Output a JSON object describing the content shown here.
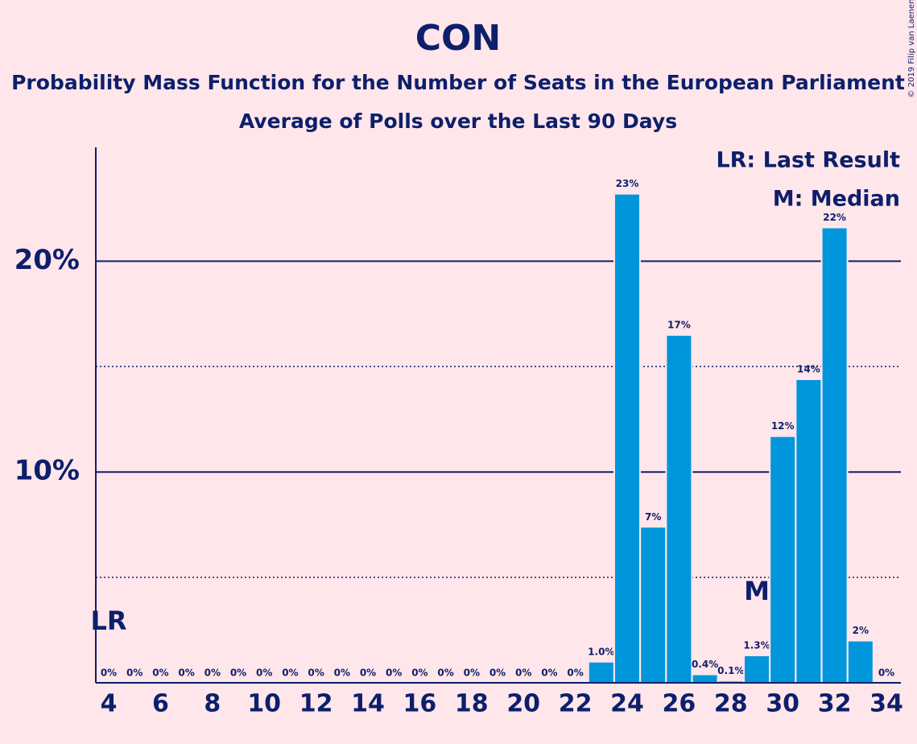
{
  "chart_data": {
    "type": "bar",
    "title": "CON",
    "subtitles": [
      "Probability Mass Function for the Number of Seats in the European Parliament",
      "Average of Polls over the Last 90 Days"
    ],
    "x": [
      4,
      5,
      6,
      7,
      8,
      9,
      10,
      11,
      12,
      13,
      14,
      15,
      16,
      17,
      18,
      19,
      20,
      21,
      22,
      23,
      24,
      25,
      26,
      27,
      28,
      29,
      30,
      31,
      32,
      33,
      34
    ],
    "values": [
      0,
      0,
      0,
      0,
      0,
      0,
      0,
      0,
      0,
      0,
      0,
      0,
      0,
      0,
      0,
      0,
      0,
      0,
      0,
      1.0,
      23.2,
      7.4,
      16.5,
      0.4,
      0.1,
      1.3,
      11.7,
      14.4,
      21.6,
      2.0,
      0
    ],
    "value_labels": [
      "0%",
      "0%",
      "0%",
      "0%",
      "0%",
      "0%",
      "0%",
      "0%",
      "0%",
      "0%",
      "0%",
      "0%",
      "0%",
      "0%",
      "0%",
      "0%",
      "0%",
      "0%",
      "0%",
      "1.0%",
      "23%",
      "7%",
      "17%",
      "0.4%",
      "0.1%",
      "1.3%",
      "12%",
      "14%",
      "22%",
      "2%",
      "0%"
    ],
    "color": "#0096db",
    "xlim": [
      3.5,
      34.5
    ],
    "xticks": [
      4,
      6,
      8,
      10,
      12,
      14,
      16,
      18,
      20,
      22,
      24,
      26,
      28,
      30,
      32,
      34
    ],
    "ylim": [
      0,
      25.4
    ],
    "yticks": [
      {
        "value": 10,
        "label": "10%"
      },
      {
        "value": 20,
        "label": "20%"
      }
    ],
    "minor_yticks": [
      5,
      15
    ],
    "grid": true,
    "annotations": [
      {
        "text": "LR",
        "x": 4
      },
      {
        "text": "M",
        "x": 29
      }
    ],
    "legend": [
      "LR: Last Result",
      "M: Median"
    ],
    "copyright": "© 2019 Filip van Laenen"
  }
}
